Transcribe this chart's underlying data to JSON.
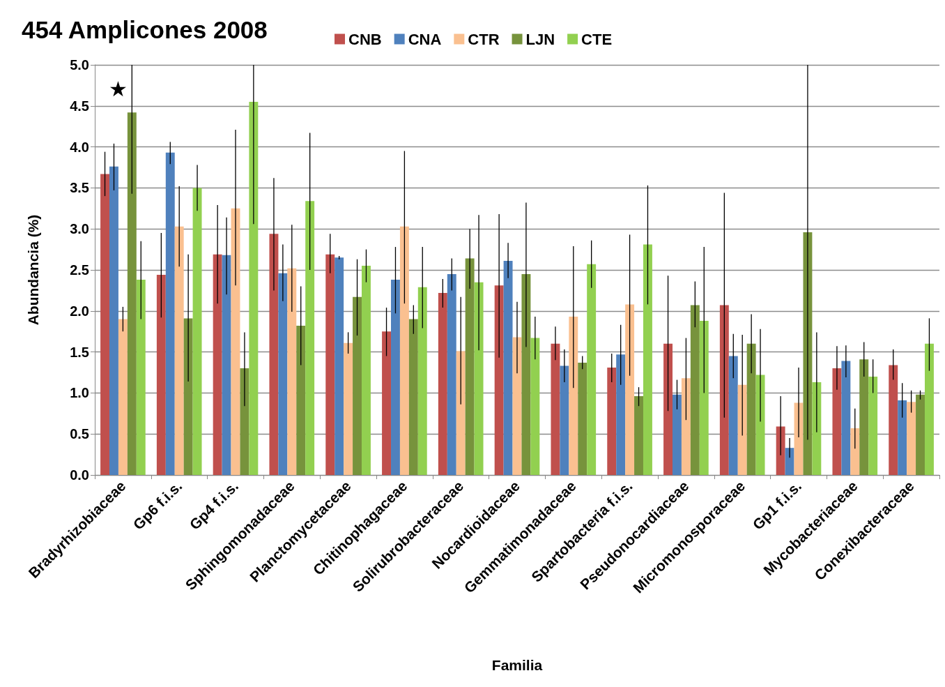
{
  "chart_data": {
    "type": "bar",
    "title": "454 Amplicones 2008",
    "xlabel": "Familia",
    "ylabel": "Abundancia (%)",
    "categories": [
      "Bradyrhizobiaceae",
      "Gp6 f.i.s.",
      "Gp4 f.i.s.",
      "Sphingomonadaceae",
      "Planctomycetaceae",
      "Chitinophagaceae",
      "Solirubrobacteraceae",
      "Nocardioidaceae",
      "Gemmatimonadaceae",
      "Spartobacteria f.i.s.",
      "Pseudonocardiaceae",
      "Micromonosporaceae",
      "Gp1 f.i.s.",
      "Mycobacteriaceae",
      "Conexibacteraceae"
    ],
    "series": [
      {
        "name": "CNB",
        "color": "#c0504d",
        "values": [
          3.67,
          2.44,
          2.69,
          2.94,
          2.69,
          1.75,
          2.22,
          2.31,
          1.6,
          1.31,
          1.6,
          2.07,
          0.59,
          1.3,
          1.34
        ],
        "errors": [
          [
            3.4,
            3.94
          ],
          [
            1.92,
            2.95
          ],
          [
            2.09,
            3.29
          ],
          [
            2.25,
            3.62
          ],
          [
            2.46,
            2.94
          ],
          [
            1.45,
            2.04
          ],
          [
            2.04,
            2.39
          ],
          [
            1.43,
            3.18
          ],
          [
            1.4,
            1.81
          ],
          [
            1.13,
            1.48
          ],
          [
            0.78,
            2.43
          ],
          [
            0.7,
            3.44
          ],
          [
            0.24,
            0.96
          ],
          [
            1.04,
            1.57
          ],
          [
            1.16,
            1.53
          ]
        ]
      },
      {
        "name": "CNA",
        "color": "#4f81bd",
        "values": [
          3.76,
          3.93,
          2.68,
          2.46,
          2.65,
          2.38,
          2.45,
          2.61,
          1.33,
          1.47,
          0.98,
          1.45,
          0.33,
          1.39,
          0.91
        ],
        "errors": [
          [
            3.47,
            4.04
          ],
          [
            3.79,
            4.06
          ],
          [
            2.2,
            3.14
          ],
          [
            2.12,
            2.81
          ],
          [
            2.63,
            2.67
          ],
          [
            1.97,
            2.78
          ],
          [
            2.25,
            2.64
          ],
          [
            2.4,
            2.83
          ],
          [
            1.13,
            1.53
          ],
          [
            1.1,
            1.83
          ],
          [
            0.8,
            1.16
          ],
          [
            1.18,
            1.72
          ],
          [
            0.21,
            0.45
          ],
          [
            1.19,
            1.58
          ],
          [
            0.7,
            1.12
          ]
        ]
      },
      {
        "name": "CTR",
        "color": "#fac090",
        "values": [
          1.9,
          3.03,
          3.25,
          2.52,
          1.61,
          3.03,
          1.51,
          1.68,
          1.93,
          2.08,
          1.18,
          1.1,
          0.88,
          0.57,
          0.89
        ],
        "errors": [
          [
            1.75,
            2.05
          ],
          [
            2.54,
            3.52
          ],
          [
            2.31,
            4.21
          ],
          [
            1.99,
            3.05
          ],
          [
            1.48,
            1.74
          ],
          [
            2.09,
            3.95
          ],
          [
            0.86,
            2.17
          ],
          [
            1.24,
            2.11
          ],
          [
            1.06,
            2.79
          ],
          [
            1.21,
            2.93
          ],
          [
            0.67,
            1.67
          ],
          [
            0.48,
            1.71
          ],
          [
            0.46,
            1.31
          ],
          [
            0.32,
            0.81
          ],
          [
            0.76,
            1.03
          ]
        ]
      },
      {
        "name": "LJN",
        "color": "#77933c",
        "values": [
          4.42,
          1.91,
          1.3,
          1.82,
          2.17,
          1.9,
          2.64,
          2.45,
          1.37,
          0.96,
          2.07,
          1.6,
          2.96,
          1.41,
          0.98
        ],
        "errors": [
          [
            3.43,
            5.0
          ],
          [
            1.14,
            2.69
          ],
          [
            0.84,
            1.74
          ],
          [
            1.34,
            2.3
          ],
          [
            1.7,
            2.63
          ],
          [
            1.72,
            2.07
          ],
          [
            2.27,
            3.0
          ],
          [
            1.56,
            3.32
          ],
          [
            1.29,
            1.45
          ],
          [
            0.84,
            1.07
          ],
          [
            1.8,
            2.36
          ],
          [
            1.24,
            1.96
          ],
          [
            0.43,
            5.0
          ],
          [
            1.2,
            1.62
          ],
          [
            0.92,
            1.03
          ]
        ]
      },
      {
        "name": "CTE",
        "color": "#92d050",
        "values": [
          2.38,
          3.5,
          4.55,
          3.34,
          2.55,
          2.29,
          2.35,
          1.67,
          2.57,
          2.81,
          1.88,
          1.22,
          1.13,
          1.2,
          1.6
        ],
        "errors": [
          [
            1.9,
            2.85
          ],
          [
            3.22,
            3.78
          ],
          [
            3.06,
            5.0
          ],
          [
            2.5,
            4.17
          ],
          [
            2.35,
            2.75
          ],
          [
            1.79,
            2.78
          ],
          [
            1.52,
            3.17
          ],
          [
            1.41,
            1.93
          ],
          [
            2.28,
            2.86
          ],
          [
            2.08,
            3.53
          ],
          [
            1.0,
            2.78
          ],
          [
            0.65,
            1.78
          ],
          [
            0.52,
            1.74
          ],
          [
            1.0,
            1.41
          ],
          [
            1.27,
            1.91
          ]
        ]
      }
    ],
    "ylim": [
      0,
      5
    ],
    "yticks": [
      {
        "value": 0,
        "label": "0.0"
      },
      {
        "value": 0.5,
        "label": "0.5"
      },
      {
        "value": 1,
        "label": "1.0"
      },
      {
        "value": 1.5,
        "label": "1.5"
      },
      {
        "value": 2,
        "label": "2.0"
      },
      {
        "value": 2.5,
        "label": "2.5"
      },
      {
        "value": 3,
        "label": "3.0"
      },
      {
        "value": 3.5,
        "label": "3.5"
      },
      {
        "value": 4,
        "label": "4.0"
      },
      {
        "value": 4.5,
        "label": "4.5"
      },
      {
        "value": 5,
        "label": "5.0"
      }
    ],
    "grid": "y",
    "legend": "top",
    "annotations": [
      "★"
    ]
  }
}
